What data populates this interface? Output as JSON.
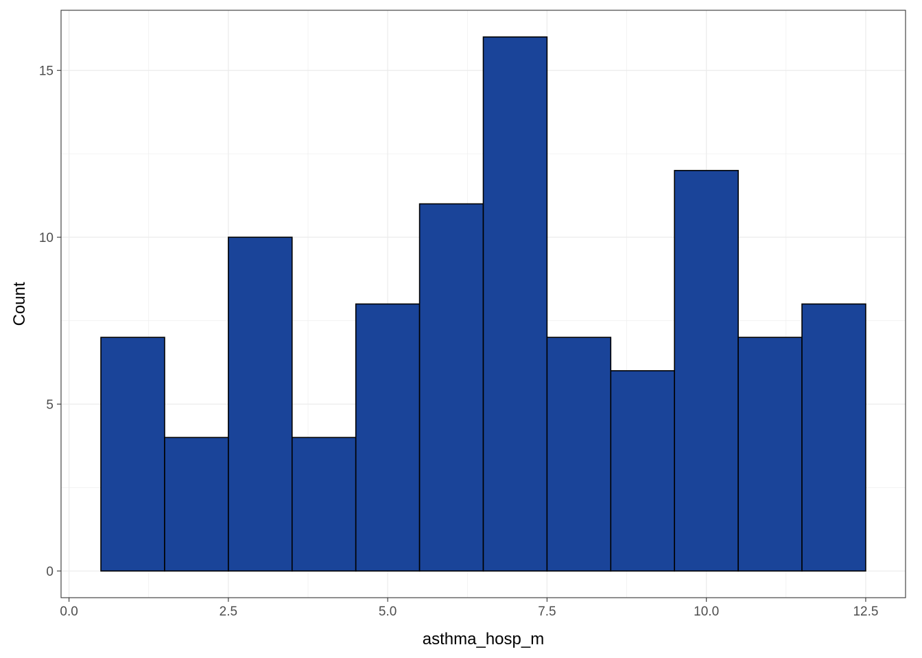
{
  "chart_data": {
    "type": "bar",
    "subtype": "histogram",
    "bin_width": 1,
    "x": [
      1,
      2,
      3,
      4,
      5,
      6,
      7,
      8,
      9,
      10,
      11,
      12
    ],
    "values": [
      7,
      4,
      10,
      4,
      8,
      11,
      16,
      7,
      6,
      12,
      7,
      8
    ],
    "xlabel": "asthma_hosp_m",
    "ylabel": "Count",
    "xlim": [
      -0.125,
      13.125
    ],
    "ylim": [
      -0.8,
      16.8
    ],
    "x_ticks": [
      0.0,
      2.5,
      5.0,
      7.5,
      10.0,
      12.5
    ],
    "x_tick_labels": [
      "0.0",
      "2.5",
      "5.0",
      "7.5",
      "10.0",
      "12.5"
    ],
    "y_ticks": [
      0,
      5,
      10,
      15
    ],
    "y_tick_labels": [
      "0",
      "5",
      "10",
      "15"
    ],
    "grid": true,
    "legend": "none",
    "bar_fill_color": "#1a4499",
    "bar_edge_color": "#000000",
    "grid_color": "#ebebeb",
    "panel_border_color": "#333333"
  }
}
